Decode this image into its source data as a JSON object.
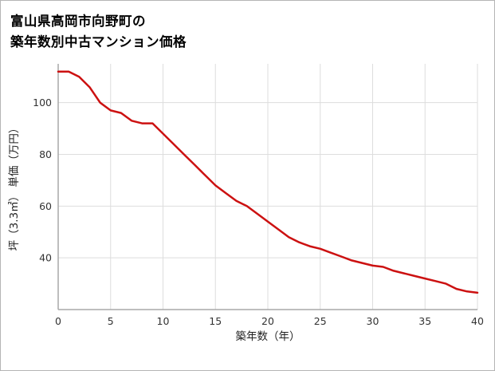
{
  "title": {
    "line1": "富山県高岡市向野町の",
    "line2": "築年数別中古マンション価格"
  },
  "chart_data": {
    "type": "line",
    "title": "富山県高岡市向野町の築年数別中古マンション価格",
    "xlabel": "築年数（年）",
    "ylabel": "坪（3.3㎡） 単価（万円）",
    "xlim": [
      0,
      40
    ],
    "ylim": [
      20,
      115
    ],
    "x_ticks": [
      0,
      5,
      10,
      15,
      20,
      25,
      30,
      35,
      40
    ],
    "y_ticks": [
      40,
      60,
      80,
      100
    ],
    "grid": true,
    "legend": "none",
    "line_color": "#cc1111",
    "line_width": 2.5,
    "x": [
      0,
      1,
      2,
      3,
      4,
      5,
      6,
      7,
      8,
      9,
      10,
      11,
      12,
      13,
      14,
      15,
      16,
      17,
      18,
      19,
      20,
      21,
      22,
      23,
      24,
      25,
      26,
      27,
      28,
      29,
      30,
      31,
      32,
      33,
      34,
      35,
      36,
      37,
      38,
      39,
      40
    ],
    "values": [
      112,
      112,
      110,
      106,
      100,
      97,
      96,
      93,
      92,
      92,
      88,
      84,
      80,
      76,
      72,
      68,
      65,
      62,
      60,
      57,
      54,
      51,
      48,
      46,
      44.5,
      43.5,
      42,
      40.5,
      39,
      38,
      37,
      36.5,
      35,
      34,
      33,
      32,
      31,
      30,
      28,
      27,
      26.5
    ]
  }
}
